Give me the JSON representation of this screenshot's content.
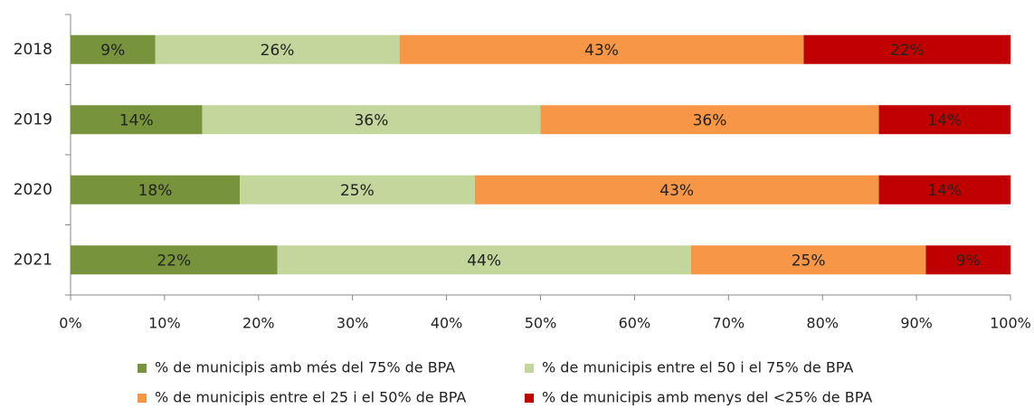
{
  "chart_data": {
    "type": "stacked-bar-horizontal",
    "categories": [
      "2018",
      "2019",
      "2020",
      "2021"
    ],
    "series": [
      {
        "name": "% de municipis amb més del 75% de BPA",
        "color": "#77933c",
        "values": [
          9,
          14,
          18,
          22
        ],
        "value_labels": [
          "9%",
          "14%",
          "18%",
          "22%"
        ]
      },
      {
        "name": "% de municipis entre el 50 i el 75% de BPA",
        "color": "#c3d69b",
        "values": [
          26,
          36,
          25,
          44
        ],
        "value_labels": [
          "26%",
          "36%",
          "25%",
          "44%"
        ]
      },
      {
        "name": "% de municipis entre el 25 i el 50% de BPA",
        "color": "#f79646",
        "values": [
          43,
          36,
          43,
          25
        ],
        "value_labels": [
          "43%",
          "36%",
          "43%",
          "25%"
        ]
      },
      {
        "name": "% de municipis amb menys del <25% de BPA",
        "color": "#c00000",
        "values": [
          22,
          14,
          14,
          9
        ],
        "value_labels": [
          "22%",
          "14%",
          "14%",
          "9%"
        ]
      }
    ],
    "xlim": [
      0,
      100
    ],
    "xticks": [
      {
        "value": 0,
        "label": "0%"
      },
      {
        "value": 10,
        "label": "10%"
      },
      {
        "value": 20,
        "label": "20%"
      },
      {
        "value": 30,
        "label": "30%"
      },
      {
        "value": 40,
        "label": "40%"
      },
      {
        "value": 50,
        "label": "50%"
      },
      {
        "value": 60,
        "label": "60%"
      },
      {
        "value": 70,
        "label": "70%"
      },
      {
        "value": 80,
        "label": "80%"
      },
      {
        "value": 90,
        "label": "90%"
      },
      {
        "value": 100,
        "label": "100%"
      }
    ],
    "grid": false
  }
}
